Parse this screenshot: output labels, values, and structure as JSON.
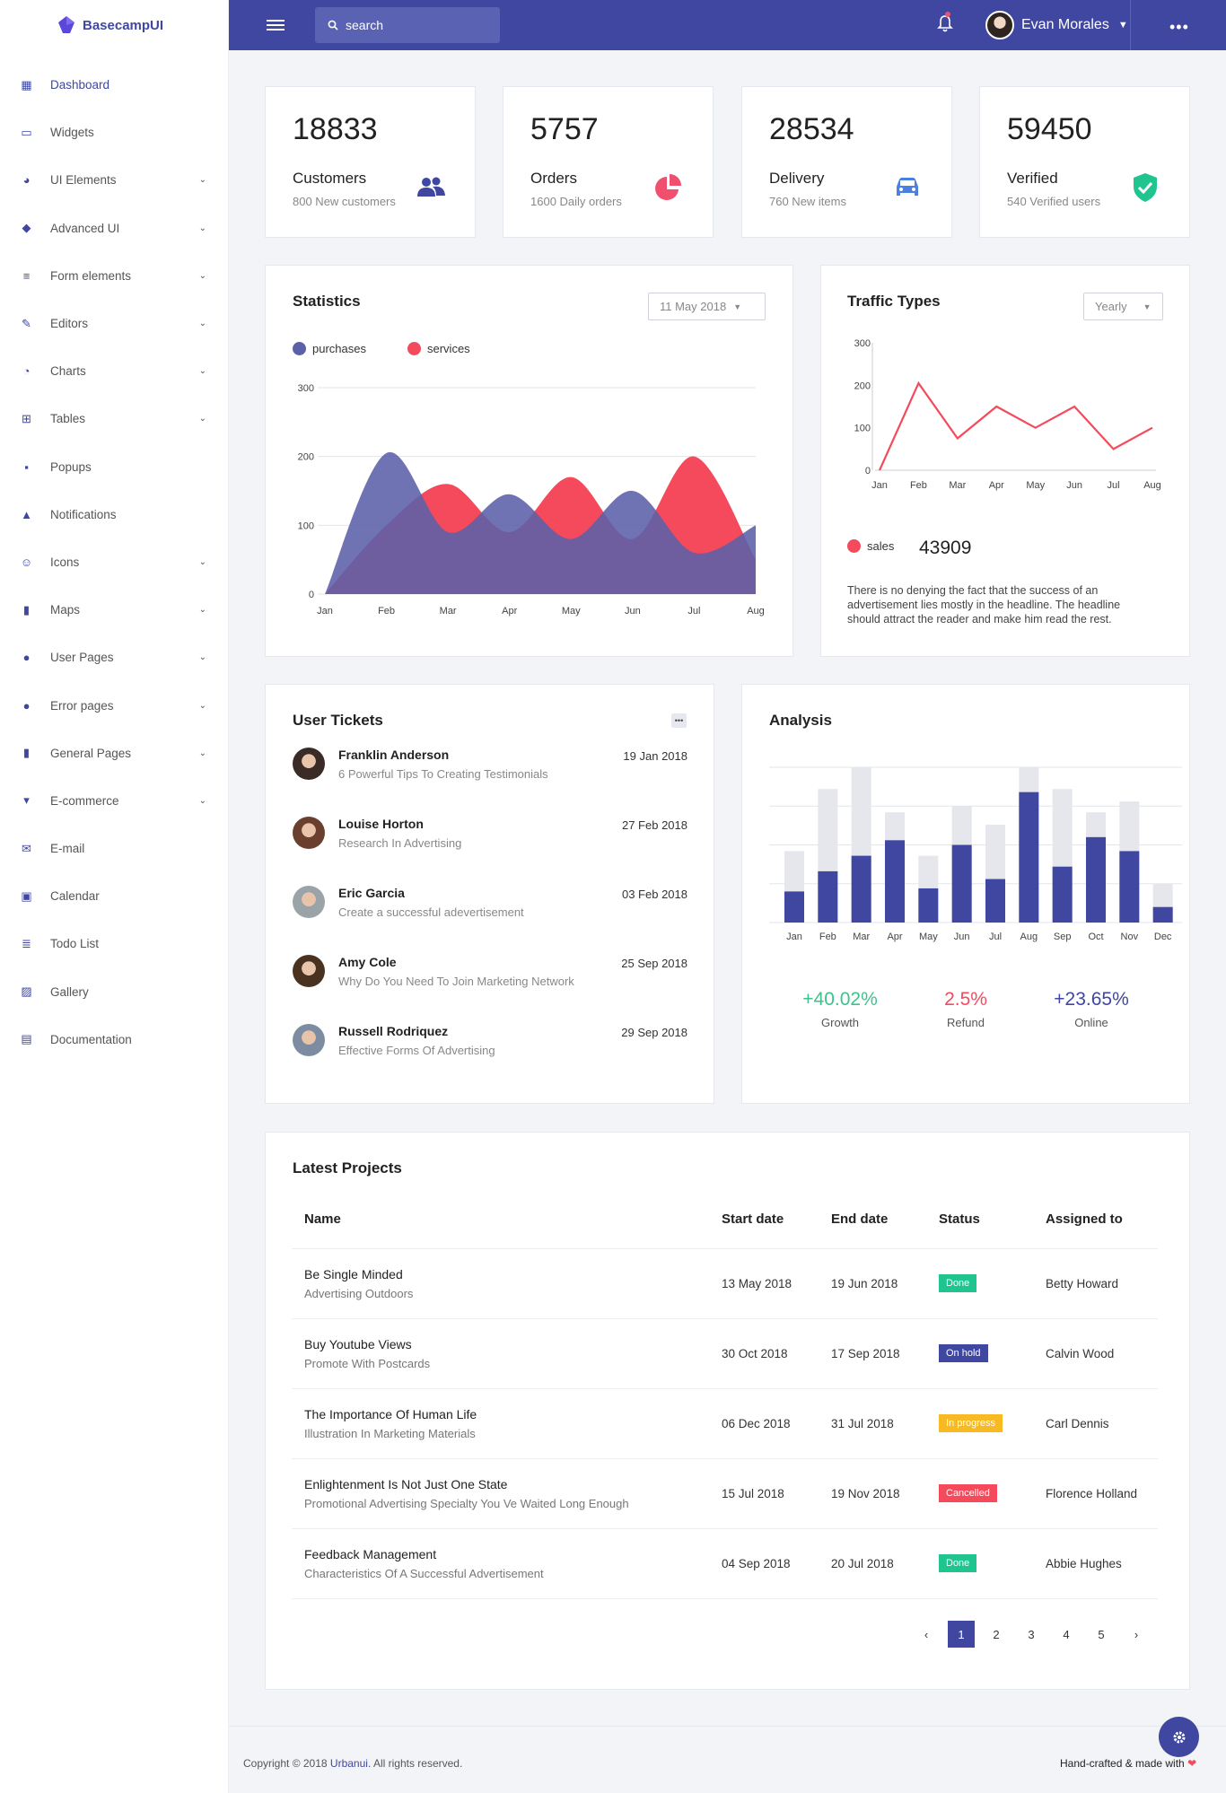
{
  "brand": {
    "name": "BasecampUI"
  },
  "sidebar": {
    "items": [
      {
        "label": "Dashboard",
        "icon": "dashboard-icon",
        "has_children": false,
        "active": true
      },
      {
        "label": "Widgets",
        "icon": "monitor-icon",
        "has_children": false
      },
      {
        "label": "UI Elements",
        "icon": "palette-icon",
        "has_children": true
      },
      {
        "label": "Advanced UI",
        "icon": "layers-icon",
        "has_children": true
      },
      {
        "label": "Form elements",
        "icon": "list-icon",
        "has_children": true
      },
      {
        "label": "Editors",
        "icon": "edit-icon",
        "has_children": true
      },
      {
        "label": "Charts",
        "icon": "pie-chart-icon",
        "has_children": true
      },
      {
        "label": "Tables",
        "icon": "grid-icon",
        "has_children": true
      },
      {
        "label": "Popups",
        "icon": "alert-icon",
        "has_children": false
      },
      {
        "label": "Notifications",
        "icon": "bell-icon",
        "has_children": false
      },
      {
        "label": "Icons",
        "icon": "smile-icon",
        "has_children": true
      },
      {
        "label": "Maps",
        "icon": "map-icon",
        "has_children": true
      },
      {
        "label": "User Pages",
        "icon": "user-icon",
        "has_children": true
      },
      {
        "label": "Error pages",
        "icon": "error-icon",
        "has_children": true
      },
      {
        "label": "General Pages",
        "icon": "file-icon",
        "has_children": true
      },
      {
        "label": "E-commerce",
        "icon": "basket-icon",
        "has_children": true
      },
      {
        "label": "E-mail",
        "icon": "mail-icon",
        "has_children": false
      },
      {
        "label": "Calendar",
        "icon": "calendar-icon",
        "has_children": false
      },
      {
        "label": "Todo List",
        "icon": "checklist-icon",
        "has_children": false
      },
      {
        "label": "Gallery",
        "icon": "image-icon",
        "has_children": false
      },
      {
        "label": "Documentation",
        "icon": "doc-icon",
        "has_children": false
      }
    ]
  },
  "topbar": {
    "search_placeholder": "search",
    "user_name": "Evan Morales"
  },
  "stats": [
    {
      "value": "18833",
      "label": "Customers",
      "sub": "800 New customers",
      "icon": "users-icon",
      "color": "#3f47a0"
    },
    {
      "value": "5757",
      "label": "Orders",
      "sub": "1600 Daily orders",
      "icon": "pie-icon",
      "color": "#f0506e"
    },
    {
      "value": "28534",
      "label": "Delivery",
      "sub": "760 New items",
      "icon": "car-icon",
      "color": "#4b7fe0"
    },
    {
      "value": "59450",
      "label": "Verified",
      "sub": "540 Verified users",
      "icon": "shield-check-icon",
      "color": "#1fc48f"
    }
  ],
  "statistics": {
    "title": "Statistics",
    "dropdown": "11 May 2018",
    "legend": [
      "purchases",
      "services"
    ],
    "colors": {
      "purchases": "#5b60a8",
      "services": "#f44a5c"
    }
  },
  "traffic": {
    "title": "Traffic Types",
    "dropdown": "Yearly",
    "legend": "sales",
    "total": "43909",
    "text": "There is no denying the fact that the success of an advertisement lies mostly in the headline. The headline should attract the reader and make him read the rest."
  },
  "tickets": {
    "title": "User Tickets",
    "items": [
      {
        "name": "Franklin Anderson",
        "desc": "6 Powerful Tips To Creating Testimonials",
        "date": "19 Jan 2018"
      },
      {
        "name": "Louise Horton",
        "desc": "Research In Advertising",
        "date": "27 Feb 2018"
      },
      {
        "name": "Eric Garcia",
        "desc": "Create a successful adevertisement",
        "date": "03 Feb 2018"
      },
      {
        "name": "Amy Cole",
        "desc": "Why Do You Need To Join Marketing Network",
        "date": "25 Sep 2018"
      },
      {
        "name": "Russell Rodriquez",
        "desc": "Effective Forms Of Advertising",
        "date": "29 Sep 2018"
      }
    ]
  },
  "analysis": {
    "title": "Analysis",
    "metrics": [
      {
        "value": "+40.02%",
        "label": "Growth",
        "color": "#3ec28c"
      },
      {
        "value": "2.5%",
        "label": "Refund",
        "color": "#f44a5c"
      },
      {
        "value": "+23.65%",
        "label": "Online",
        "color": "#3f47a0"
      }
    ]
  },
  "projects": {
    "title": "Latest Projects",
    "columns": [
      "Name",
      "Start date",
      "End date",
      "Status",
      "Assigned to"
    ],
    "rows": [
      {
        "name": "Be Single Minded",
        "sub": "Advertising Outdoors",
        "start": "13 May 2018",
        "end": "19 Jun 2018",
        "status": "Done",
        "status_color": "#1fc48f",
        "assigned": "Betty Howard"
      },
      {
        "name": "Buy Youtube Views",
        "sub": "Promote With Postcards",
        "start": "30 Oct 2018",
        "end": "17 Sep 2018",
        "status": "On hold",
        "status_color": "#3f47a0",
        "assigned": "Calvin Wood"
      },
      {
        "name": "The Importance Of Human Life",
        "sub": "Illustration In Marketing Materials",
        "start": "06 Dec 2018",
        "end": "31 Jul 2018",
        "status": "In progress",
        "status_color": "#f7b924",
        "assigned": "Carl Dennis"
      },
      {
        "name": "Enlightenment Is Not Just One State",
        "sub": "Promotional Advertising Specialty You Ve Waited Long Enough",
        "start": "15 Jul 2018",
        "end": "19 Nov 2018",
        "status": "Cancelled",
        "status_color": "#f44a5c",
        "assigned": "Florence Holland"
      },
      {
        "name": "Feedback Management",
        "sub": "Characteristics Of A Successful Advertisement",
        "start": "04 Sep 2018",
        "end": "20 Jul 2018",
        "status": "Done",
        "status_color": "#1fc48f",
        "assigned": "Abbie Hughes"
      }
    ],
    "pagination": {
      "prev": "‹",
      "pages": [
        "1",
        "2",
        "3",
        "4",
        "5"
      ],
      "current": "1",
      "next": "›"
    }
  },
  "footer": {
    "copyright_prefix": "Copyright © 2018 ",
    "company": "Urbanui",
    "copyright_suffix": ". All rights reserved.",
    "right": "Hand-crafted & made with"
  },
  "chart_data": [
    {
      "type": "area",
      "title": "Statistics",
      "categories": [
        "Jan",
        "Feb",
        "Mar",
        "Apr",
        "May",
        "Jun",
        "Jul",
        "Aug"
      ],
      "ylim": [
        0,
        300
      ],
      "yticks": [
        0,
        100,
        200,
        300
      ],
      "series": [
        {
          "name": "purchases",
          "values": [
            0,
            205,
            90,
            145,
            80,
            150,
            60,
            100
          ]
        },
        {
          "name": "services",
          "values": [
            0,
            100,
            160,
            90,
            170,
            80,
            200,
            50
          ]
        }
      ]
    },
    {
      "type": "line",
      "title": "Traffic Types",
      "categories": [
        "Jan",
        "Feb",
        "Mar",
        "Apr",
        "May",
        "Jun",
        "Jul",
        "Aug"
      ],
      "ylim": [
        0,
        300
      ],
      "yticks": [
        0,
        100,
        200,
        300
      ],
      "series": [
        {
          "name": "sales",
          "values": [
            0,
            205,
            75,
            150,
            100,
            150,
            50,
            100
          ]
        }
      ]
    },
    {
      "type": "bar",
      "title": "Analysis",
      "categories": [
        "Jan",
        "Feb",
        "Mar",
        "Apr",
        "May",
        "Jun",
        "Jul",
        "Aug",
        "Sep",
        "Oct",
        "Nov",
        "Dec"
      ],
      "ylim": [
        0,
        100
      ],
      "series": [
        {
          "name": "total",
          "values": [
            46,
            86,
            100,
            71,
            43,
            75,
            63,
            100,
            86,
            71,
            78,
            25
          ]
        },
        {
          "name": "value",
          "values": [
            20,
            33,
            43,
            53,
            22,
            50,
            28,
            84,
            36,
            55,
            46,
            10
          ]
        }
      ]
    }
  ]
}
